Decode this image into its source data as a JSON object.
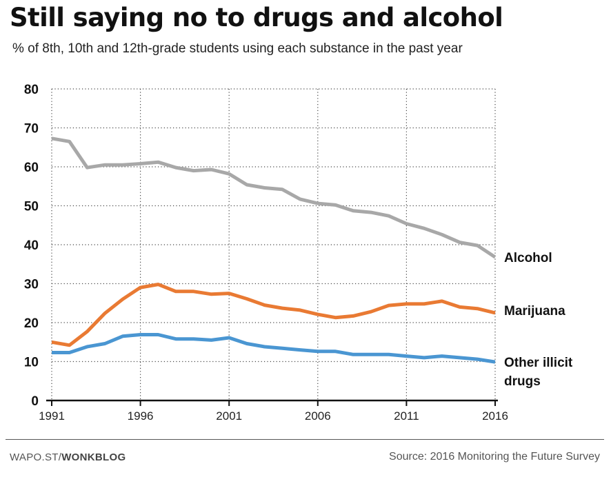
{
  "header": {
    "title": "Still saying no to drugs and alcohol",
    "subtitle": "% of 8th, 10th and 12th-grade students using each substance in the past year"
  },
  "chart_data": {
    "type": "line",
    "title": "Still saying no to drugs and alcohol",
    "subtitle": "% of 8th, 10th and 12th-grade students using each substance in the past year",
    "xlabel": "",
    "ylabel": "",
    "xlim": [
      1991,
      2016
    ],
    "ylim": [
      0,
      80
    ],
    "x_ticks": [
      1991,
      1996,
      2001,
      2006,
      2011,
      2016
    ],
    "x_tick_labels": [
      "1991",
      "1996",
      "2001",
      "2006",
      "2011",
      "2016"
    ],
    "y_ticks": [
      0,
      10,
      20,
      30,
      40,
      50,
      60,
      70,
      80
    ],
    "y_tick_labels": [
      "0",
      "10",
      "20",
      "30",
      "40",
      "50",
      "60",
      "70",
      "80"
    ],
    "grid": "dotted",
    "legend": "end-of-line labels",
    "x": [
      1991,
      1992,
      1993,
      1994,
      1995,
      1996,
      1997,
      1998,
      1999,
      2000,
      2001,
      2002,
      2003,
      2004,
      2005,
      2006,
      2007,
      2008,
      2009,
      2010,
      2011,
      2012,
      2013,
      2014,
      2015,
      2016
    ],
    "series": [
      {
        "name": "Alcohol",
        "color": "#a8a8a8",
        "values": [
          67.3,
          66.5,
          59.8,
          60.5,
          60.5,
          60.8,
          61.2,
          59.8,
          59.0,
          59.3,
          58.2,
          55.4,
          54.6,
          54.2,
          51.7,
          50.6,
          50.2,
          48.7,
          48.3,
          47.4,
          45.4,
          44.2,
          42.6,
          40.6,
          39.8,
          36.8
        ]
      },
      {
        "name": "Marijuana",
        "color": "#e97a33",
        "values": [
          15.0,
          14.2,
          17.7,
          22.4,
          26.0,
          29.0,
          29.8,
          28.0,
          28.0,
          27.3,
          27.5,
          26.1,
          24.5,
          23.7,
          23.2,
          22.1,
          21.3,
          21.7,
          22.8,
          24.4,
          24.8,
          24.8,
          25.5,
          24.0,
          23.6,
          22.5
        ]
      },
      {
        "name": "Other illicit drugs",
        "color": "#4a96d2",
        "values": [
          12.3,
          12.3,
          13.8,
          14.6,
          16.5,
          16.9,
          16.9,
          15.8,
          15.8,
          15.5,
          16.1,
          14.6,
          13.8,
          13.4,
          13.0,
          12.6,
          12.6,
          11.8,
          11.8,
          11.8,
          11.4,
          11.0,
          11.4,
          11.0,
          10.6,
          9.9
        ]
      }
    ],
    "labels": {
      "alcohol": "Alcohol",
      "marijuana": "Marijuana",
      "other_line1": "Other illicit",
      "other_line2": "drugs"
    }
  },
  "footer": {
    "brand_prefix": "WAPO.ST/",
    "brand_bold": "WONKBLOG",
    "source": "Source: 2016 Monitoring the Future Survey"
  }
}
